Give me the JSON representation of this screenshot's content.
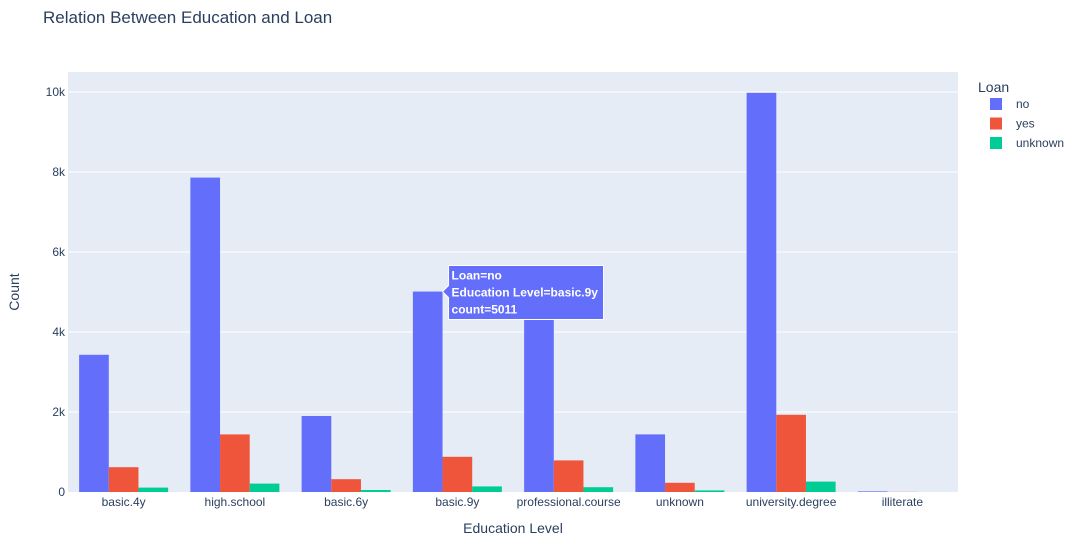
{
  "chart_data": {
    "type": "bar",
    "barmode": "group",
    "title": "Relation Between Education and Loan",
    "xlabel": "Education Level",
    "ylabel": "Count",
    "ylim": [
      0,
      10500
    ],
    "yticks": [
      {
        "value": 0,
        "label": "0"
      },
      {
        "value": 2000,
        "label": "2k"
      },
      {
        "value": 4000,
        "label": "4k"
      },
      {
        "value": 6000,
        "label": "6k"
      },
      {
        "value": 8000,
        "label": "8k"
      },
      {
        "value": 10000,
        "label": "10k"
      }
    ],
    "grid": true,
    "categories": [
      "basic.4y",
      "high.school",
      "basic.6y",
      "basic.9y",
      "professional.course",
      "unknown",
      "university.degree",
      "illiterate"
    ],
    "legend": {
      "title": "Loan",
      "placement": "top-right"
    },
    "series": [
      {
        "name": "no",
        "color": "#636efa",
        "values": [
          3430,
          7860,
          1900,
          5011,
          4320,
          1440,
          9980,
          15
        ]
      },
      {
        "name": "yes",
        "color": "#ef553b",
        "values": [
          620,
          1440,
          320,
          880,
          790,
          230,
          1930,
          3
        ]
      },
      {
        "name": "unknown",
        "color": "#00cc96",
        "values": [
          110,
          210,
          50,
          140,
          120,
          40,
          260,
          0
        ]
      }
    ],
    "hover": {
      "series_index": 0,
      "category_index": 3,
      "lines": [
        "Loan=no",
        "Education Level=basic.9y",
        "count=5011"
      ]
    }
  }
}
